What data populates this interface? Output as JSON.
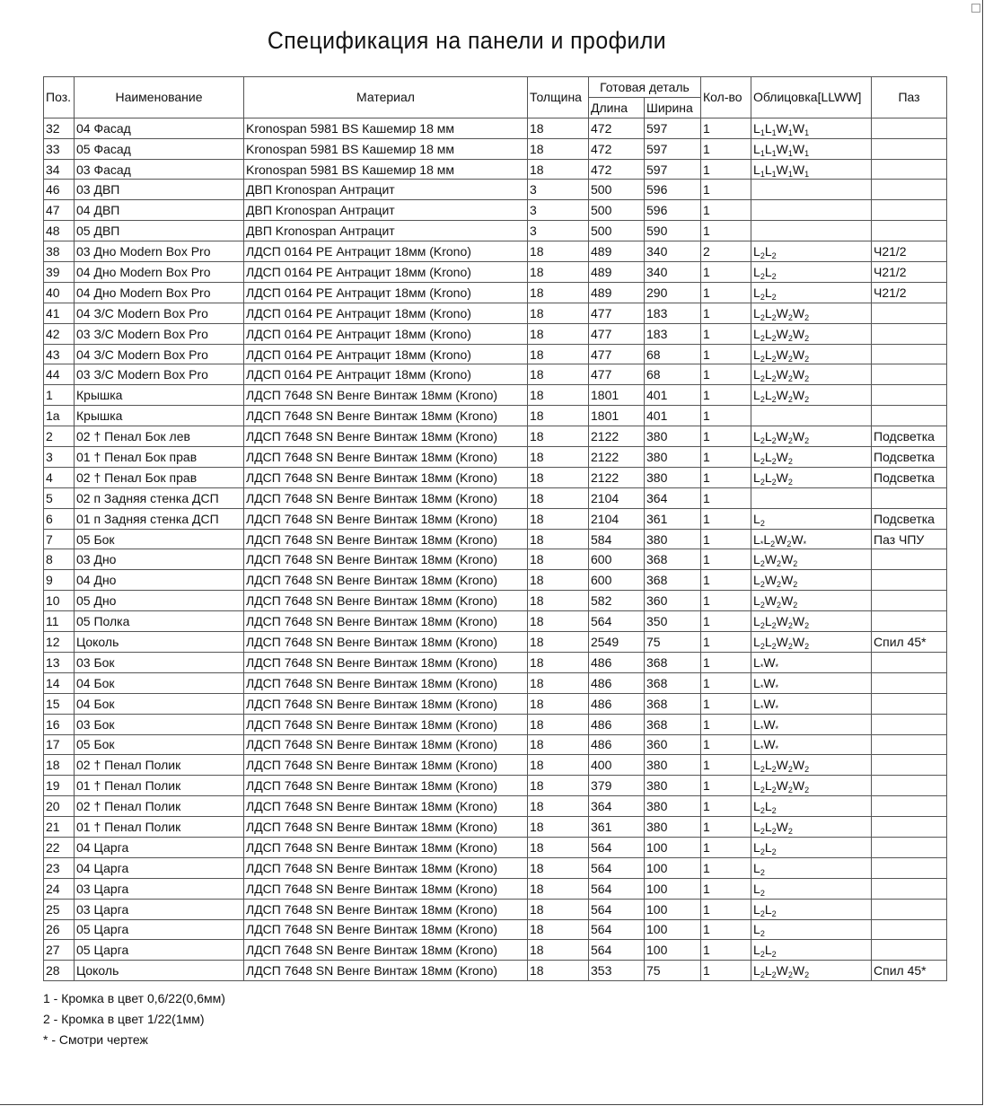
{
  "title": "Спецификация на панели и профили",
  "headers": {
    "pos": "Поз.",
    "name": "Наименование",
    "material": "Материал",
    "thickness": "Толщина",
    "finished": "Готовая деталь",
    "length": "Длина",
    "width": "Ширина",
    "qty": "Кол-во",
    "lining": "Облицовка[LLWW]",
    "groove": "Паз"
  },
  "rows": [
    [
      "32",
      "04 Фасад",
      "Kronospan 5981 BS Кашемир 18 мм",
      "18",
      "472",
      "597",
      "1",
      "L1L1W1W1",
      ""
    ],
    [
      "33",
      "05 Фасад",
      "Kronospan 5981 BS Кашемир 18 мм",
      "18",
      "472",
      "597",
      "1",
      "L1L1W1W1",
      ""
    ],
    [
      "34",
      "03 Фасад",
      "Kronospan 5981 BS Кашемир 18 мм",
      "18",
      "472",
      "597",
      "1",
      "L1L1W1W1",
      ""
    ],
    [
      "46",
      "03 ДВП",
      "ДВП Kronospan Антрацит",
      "3",
      "500",
      "596",
      "1",
      "",
      ""
    ],
    [
      "47",
      "04 ДВП",
      "ДВП Kronospan Антрацит",
      "3",
      "500",
      "596",
      "1",
      "",
      ""
    ],
    [
      "48",
      "05 ДВП",
      "ДВП Kronospan Антрацит",
      "3",
      "500",
      "590",
      "1",
      "",
      ""
    ],
    [
      "38",
      "03 Дно Modern Box Pro",
      "ЛДСП 0164 PE Антрацит 18мм (Krono)",
      "18",
      "489",
      "340",
      "2",
      "L2L2",
      "Ч21/2"
    ],
    [
      "39",
      "04 Дно Modern Box Pro",
      "ЛДСП 0164 PE Антрацит 18мм (Krono)",
      "18",
      "489",
      "340",
      "1",
      "L2L2",
      "Ч21/2"
    ],
    [
      "40",
      "04 Дно Modern Box Pro",
      "ЛДСП 0164 PE Антрацит 18мм (Krono)",
      "18",
      "489",
      "290",
      "1",
      "L2L2",
      "Ч21/2"
    ],
    [
      "41",
      "04 З/С Modern Box Pro",
      "ЛДСП 0164 PE Антрацит 18мм (Krono)",
      "18",
      "477",
      "183",
      "1",
      "L2L2W2W2",
      ""
    ],
    [
      "42",
      "03 З/С Modern Box Pro",
      "ЛДСП 0164 PE Антрацит 18мм (Krono)",
      "18",
      "477",
      "183",
      "1",
      "L2L2W2W2",
      ""
    ],
    [
      "43",
      "04 З/С Modern Box Pro",
      "ЛДСП 0164 PE Антрацит 18мм (Krono)",
      "18",
      "477",
      "68",
      "1",
      "L2L2W2W2",
      ""
    ],
    [
      "44",
      "03 З/С Modern Box Pro",
      "ЛДСП 0164 PE Антрацит 18мм (Krono)",
      "18",
      "477",
      "68",
      "1",
      "L2L2W2W2",
      ""
    ],
    [
      "1",
      "Крышка",
      "ЛДСП 7648 SN Венге Винтаж 18мм (Krono)",
      "18",
      "1801",
      "401",
      "1",
      "L2L2W2W2",
      ""
    ],
    [
      "1а",
      "Крышка",
      "ЛДСП 7648 SN Венге Винтаж 18мм (Krono)",
      "18",
      "1801",
      "401",
      "1",
      "",
      ""
    ],
    [
      "2",
      "02 † Пенал Бок лев",
      "ЛДСП 7648 SN Венге Винтаж 18мм (Krono)",
      "18",
      "2122",
      "380",
      "1",
      "L2L2W2W2",
      "Подсветка"
    ],
    [
      "3",
      "01 † Пенал Бок прав",
      "ЛДСП 7648 SN Венге Винтаж 18мм (Krono)",
      "18",
      "2122",
      "380",
      "1",
      "L2L2W2",
      "Подсветка"
    ],
    [
      "4",
      "02 † Пенал Бок прав",
      "ЛДСП 7648 SN Венге Винтаж 18мм (Krono)",
      "18",
      "2122",
      "380",
      "1",
      "L2L2W2",
      "Подсветка"
    ],
    [
      "5",
      "02 п Задняя стенка ДСП",
      "ЛДСП 7648 SN Венге Винтаж 18мм (Krono)",
      "18",
      "2104",
      "364",
      "1",
      "",
      ""
    ],
    [
      "6",
      "01 п Задняя стенка ДСП",
      "ЛДСП 7648 SN Венге Винтаж 18мм (Krono)",
      "18",
      "2104",
      "361",
      "1",
      "L2",
      "Подсветка"
    ],
    [
      "7",
      "05 Бок",
      "ЛДСП 7648 SN Венге Винтаж 18мм (Krono)",
      "18",
      "584",
      "380",
      "1",
      "L*L2W2W*",
      "Паз ЧПУ"
    ],
    [
      "8",
      "03 Дно",
      "ЛДСП 7648 SN Венге Винтаж 18мм (Krono)",
      "18",
      "600",
      "368",
      "1",
      "L2W2W2",
      ""
    ],
    [
      "9",
      "04 Дно",
      "ЛДСП 7648 SN Венге Винтаж 18мм (Krono)",
      "18",
      "600",
      "368",
      "1",
      "L2W2W2",
      ""
    ],
    [
      "10",
      "05 Дно",
      "ЛДСП 7648 SN Венге Винтаж 18мм (Krono)",
      "18",
      "582",
      "360",
      "1",
      "L2W2W2",
      ""
    ],
    [
      "11",
      "05 Полка",
      "ЛДСП 7648 SN Венге Винтаж 18мм (Krono)",
      "18",
      "564",
      "350",
      "1",
      "L2L2W2W2",
      ""
    ],
    [
      "12",
      "Цоколь",
      "ЛДСП 7648 SN Венге Винтаж 18мм (Krono)",
      "18",
      "2549",
      "75",
      "1",
      "L2L2W2W2",
      "Спил 45*"
    ],
    [
      "13",
      "03 Бок",
      "ЛДСП 7648 SN Венге Винтаж 18мм (Krono)",
      "18",
      "486",
      "368",
      "1",
      "L*W*",
      ""
    ],
    [
      "14",
      "04 Бок",
      "ЛДСП 7648 SN Венге Винтаж 18мм (Krono)",
      "18",
      "486",
      "368",
      "1",
      "L*W*",
      ""
    ],
    [
      "15",
      "04 Бок",
      "ЛДСП 7648 SN Венге Винтаж 18мм (Krono)",
      "18",
      "486",
      "368",
      "1",
      "L*W*",
      ""
    ],
    [
      "16",
      "03 Бок",
      "ЛДСП 7648 SN Венге Винтаж 18мм (Krono)",
      "18",
      "486",
      "368",
      "1",
      "L*W*",
      ""
    ],
    [
      "17",
      "05 Бок",
      "ЛДСП 7648 SN Венге Винтаж 18мм (Krono)",
      "18",
      "486",
      "360",
      "1",
      "L*W*",
      ""
    ],
    [
      "18",
      "02 † Пенал Полик",
      "ЛДСП 7648 SN Венге Винтаж 18мм (Krono)",
      "18",
      "400",
      "380",
      "1",
      "L2L2W2W2",
      ""
    ],
    [
      "19",
      "01 † Пенал Полик",
      "ЛДСП 7648 SN Венге Винтаж 18мм (Krono)",
      "18",
      "379",
      "380",
      "1",
      "L2L2W2W2",
      ""
    ],
    [
      "20",
      "02 † Пенал Полик",
      "ЛДСП 7648 SN Венге Винтаж 18мм (Krono)",
      "18",
      "364",
      "380",
      "1",
      "L2L2",
      ""
    ],
    [
      "21",
      "01 † Пенал Полик",
      "ЛДСП 7648 SN Венге Винтаж 18мм (Krono)",
      "18",
      "361",
      "380",
      "1",
      "L2L2W2",
      ""
    ],
    [
      "22",
      "04 Царга",
      "ЛДСП 7648 SN Венге Винтаж 18мм (Krono)",
      "18",
      "564",
      "100",
      "1",
      "L2L2",
      ""
    ],
    [
      "23",
      "04 Царга",
      "ЛДСП 7648 SN Венге Винтаж 18мм (Krono)",
      "18",
      "564",
      "100",
      "1",
      "L2",
      ""
    ],
    [
      "24",
      "03 Царга",
      "ЛДСП 7648 SN Венге Винтаж 18мм (Krono)",
      "18",
      "564",
      "100",
      "1",
      "L2",
      ""
    ],
    [
      "25",
      "03 Царга",
      "ЛДСП 7648 SN Венге Винтаж 18мм (Krono)",
      "18",
      "564",
      "100",
      "1",
      "L2L2",
      ""
    ],
    [
      "26",
      "05 Царга",
      "ЛДСП 7648 SN Венге Винтаж 18мм (Krono)",
      "18",
      "564",
      "100",
      "1",
      "L2",
      ""
    ],
    [
      "27",
      "05 Царга",
      "ЛДСП 7648 SN Венге Винтаж 18мм (Krono)",
      "18",
      "564",
      "100",
      "1",
      "L2L2",
      ""
    ],
    [
      "28",
      "Цоколь",
      "ЛДСП 7648 SN Венге Винтаж 18мм (Krono)",
      "18",
      "353",
      "75",
      "1",
      "L2L2W2W2",
      "Спил 45*"
    ]
  ],
  "notes": [
    "1 - Кромка в цвет 0,6/22(0,6мм)",
    "2 - Кромка в цвет 1/22(1мм)",
    "*  - Смотри чертеж"
  ]
}
